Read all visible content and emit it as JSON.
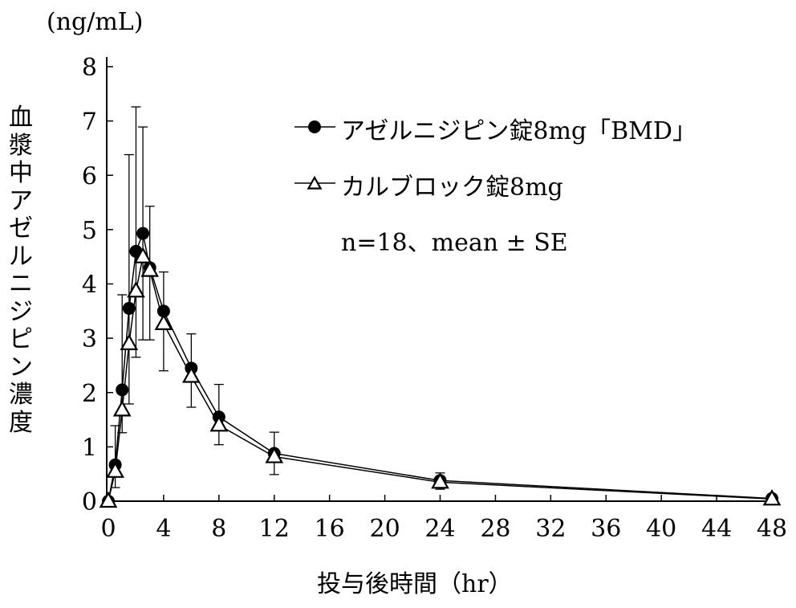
{
  "chart_data": {
    "type": "line",
    "unit_label": "(ng/mL)",
    "ylabel": "血漿中アゼルニジピン濃度",
    "xlabel": "投与後時間（hr）",
    "xlim": [
      0,
      48
    ],
    "ylim": [
      0,
      8
    ],
    "xticks": [
      0,
      4,
      8,
      12,
      16,
      20,
      24,
      28,
      32,
      36,
      40,
      44,
      48
    ],
    "yticks": [
      0,
      1,
      2,
      3,
      4,
      5,
      6,
      7,
      8
    ],
    "x": [
      0,
      0.5,
      1,
      1.5,
      2,
      2.5,
      3,
      4,
      6,
      8,
      12,
      24,
      48
    ],
    "series": [
      {
        "name": "アゼルニジピン錠8mg「BMD」",
        "marker": "filled-circle",
        "values": [
          0,
          0.67,
          2.05,
          3.55,
          4.6,
          4.93,
          4.3,
          3.5,
          2.45,
          1.55,
          0.88,
          0.38,
          0.05
        ]
      },
      {
        "name": "カルブロック錠8mg",
        "marker": "open-triangle",
        "values": [
          0,
          0.55,
          1.68,
          2.9,
          3.87,
          4.5,
          4.25,
          3.27,
          2.3,
          1.4,
          0.82,
          0.35,
          0.04
        ]
      }
    ],
    "error_bars": [
      [
        0,
        0
      ],
      [
        0.25,
        1.39
      ],
      [
        1.26,
        3.8
      ],
      [
        1.79,
        6.38
      ],
      [
        2.65,
        7.26
      ],
      [
        2.97,
        6.89
      ],
      [
        2.97,
        5.43
      ],
      [
        2.4,
        4.22
      ],
      [
        1.73,
        3.08
      ],
      [
        1.04,
        2.15
      ],
      [
        0.49,
        1.27
      ],
      [
        0.22,
        0.52
      ],
      [
        0.02,
        0.08
      ]
    ],
    "annotation": "n=18、mean ± SE",
    "legend_position": "top-right"
  }
}
